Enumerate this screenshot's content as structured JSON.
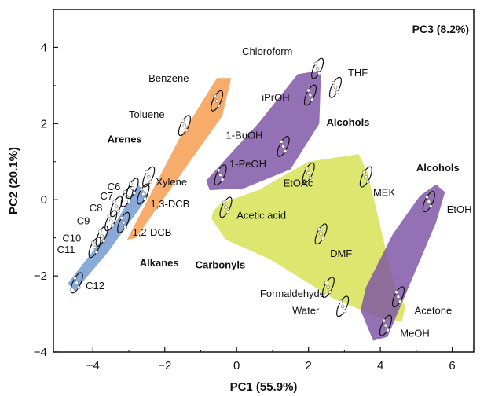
{
  "chart_data": {
    "type": "scatter",
    "title": "",
    "xlabel": "PC1 (55.9%)",
    "ylabel": "PC2 (20.1%)",
    "corner_label": "PC3 (8.2%)",
    "xlim": [
      -5.1,
      6.6
    ],
    "ylim": [
      -4.0,
      5.0
    ],
    "xticks": [
      "−4",
      "−2",
      "0",
      "2",
      "4",
      "6"
    ],
    "xtick_values": [
      -4,
      -2,
      0,
      2,
      4,
      6
    ],
    "yticks": [
      "−4",
      "−2",
      "0",
      "2",
      "4"
    ],
    "ytick_values": [
      -4,
      -2,
      0,
      2,
      4
    ],
    "groups": [
      {
        "name": "Alkanes",
        "color": "#6d97d0",
        "label_at": [
          -2.7,
          -1.75
        ],
        "polygon": [
          [
            -4.7,
            -2.2
          ],
          [
            -3.3,
            -0.5
          ],
          [
            -2.75,
            0.4
          ],
          [
            -2.45,
            0.1
          ],
          [
            -3.6,
            -1.4
          ],
          [
            -4.5,
            -2.4
          ]
        ]
      },
      {
        "name": "Arenes",
        "color": "#f59a4b",
        "label_at": [
          -3.6,
          1.5
        ],
        "polygon": [
          [
            -3.05,
            -1.05
          ],
          [
            -1.6,
            1.6
          ],
          [
            -0.55,
            3.2
          ],
          [
            -0.15,
            3.2
          ],
          [
            -0.4,
            2.2
          ],
          [
            -1.9,
            0.2
          ],
          [
            -2.8,
            -1.0
          ]
        ]
      },
      {
        "name": "Alcohols",
        "color": "#7d52a5",
        "label_at": [
          2.5,
          1.95
        ],
        "polygon": [
          [
            -0.85,
            0.5
          ],
          [
            0.6,
            2.0
          ],
          [
            1.7,
            3.3
          ],
          [
            2.35,
            3.4
          ],
          [
            2.3,
            2.0
          ],
          [
            1.5,
            0.8
          ],
          [
            0.2,
            0.3
          ],
          [
            -0.75,
            0.25
          ]
        ]
      },
      {
        "name": "Carbonyls",
        "color": "#d6e04e",
        "label_at": [
          -1.15,
          -1.8
        ],
        "polygon": [
          [
            -0.7,
            -0.5
          ],
          [
            -0.3,
            -1.05
          ],
          [
            0.9,
            -1.55
          ],
          [
            2.7,
            -2.6
          ],
          [
            4.0,
            -3.1
          ],
          [
            4.6,
            -3.2
          ],
          [
            4.7,
            -2.8
          ],
          [
            4.4,
            -2.3
          ],
          [
            3.65,
            0.7
          ],
          [
            3.4,
            1.2
          ],
          [
            2.0,
            1.0
          ],
          [
            0.6,
            0.25
          ],
          [
            -0.45,
            -0.1
          ],
          [
            -0.65,
            -0.3
          ]
        ]
      },
      {
        "name": "Alcohols",
        "color": "#7d52a5",
        "label_at": [
          5.0,
          0.75
        ],
        "polygon": [
          [
            3.45,
            -2.9
          ],
          [
            3.8,
            -3.7
          ],
          [
            4.2,
            -3.6
          ],
          [
            5.55,
            -0.6
          ],
          [
            5.8,
            0.2
          ],
          [
            5.55,
            0.4
          ],
          [
            5.1,
            0.1
          ],
          [
            4.35,
            -0.9
          ],
          [
            3.6,
            -2.3
          ]
        ]
      }
    ],
    "points": [
      {
        "name": "C12",
        "x": -4.45,
        "y": -2.18,
        "label_at": [
          -4.2,
          -2.35
        ]
      },
      {
        "name": "C11",
        "x": -3.95,
        "y": -1.25,
        "label_at": [
          -5.0,
          -1.4
        ]
      },
      {
        "name": "C10",
        "x": -3.75,
        "y": -0.95,
        "label_at": [
          -4.85,
          -1.1
        ]
      },
      {
        "name": "C9",
        "x": -3.5,
        "y": -0.55,
        "label_at": [
          -4.45,
          -0.65
        ]
      },
      {
        "name": "C8",
        "x": -3.35,
        "y": -0.18,
        "label_at": [
          -4.1,
          -0.3
        ]
      },
      {
        "name": "C7",
        "x": -3.05,
        "y": 0.08,
        "label_at": [
          -3.8,
          0.0
        ]
      },
      {
        "name": "C6",
        "x": -2.9,
        "y": 0.3,
        "label_at": [
          -3.6,
          0.25
        ]
      },
      {
        "name": "1,2-DCB",
        "x": -3.15,
        "y": -0.6,
        "label_at": [
          -2.9,
          -0.95
        ]
      },
      {
        "name": "1,3-DCB",
        "x": -2.6,
        "y": 0.15,
        "label_at": [
          -2.4,
          -0.2
        ]
      },
      {
        "name": "Xylene",
        "x": -2.45,
        "y": 0.6,
        "label_at": [
          -2.25,
          0.38
        ]
      },
      {
        "name": "Toluene",
        "x": -1.45,
        "y": 1.95,
        "label_at": [
          -3.0,
          2.15
        ]
      },
      {
        "name": "Benzene",
        "x": -0.55,
        "y": 2.6,
        "label_at": [
          -2.45,
          3.1
        ]
      },
      {
        "name": "1-PeOH",
        "x": -0.45,
        "y": 0.65,
        "label_at": [
          -0.2,
          0.85
        ]
      },
      {
        "name": "1-BuOH",
        "x": 1.3,
        "y": 1.4,
        "label_at": [
          -0.3,
          1.6
        ]
      },
      {
        "name": "iPrOH",
        "x": 2.05,
        "y": 2.75,
        "label_at": [
          0.7,
          2.6
        ]
      },
      {
        "name": "Chloroform",
        "x": 2.25,
        "y": 3.45,
        "label_at": [
          0.15,
          3.8
        ]
      },
      {
        "name": "THF",
        "x": 2.75,
        "y": 2.95,
        "label_at": [
          3.1,
          3.25
        ]
      },
      {
        "name": "EtOAc",
        "x": 2.0,
        "y": 0.7,
        "label_at": [
          1.3,
          0.35
        ]
      },
      {
        "name": "MEK",
        "x": 3.6,
        "y": 0.6,
        "label_at": [
          3.8,
          0.1
        ]
      },
      {
        "name": "Acetic acid",
        "x": -0.3,
        "y": -0.2,
        "label_at": [
          0.0,
          -0.5
        ]
      },
      {
        "name": "DMF",
        "x": 2.35,
        "y": -0.9,
        "label_at": [
          2.6,
          -1.5
        ]
      },
      {
        "name": "Formaldehyde",
        "x": 2.55,
        "y": -2.3,
        "label_at": [
          0.65,
          -2.55
        ]
      },
      {
        "name": "Water",
        "x": 2.95,
        "y": -2.8,
        "label_at": [
          1.55,
          -3.0
        ]
      },
      {
        "name": "EtOH",
        "x": 5.35,
        "y": -0.05,
        "label_at": [
          5.85,
          -0.35
        ]
      },
      {
        "name": "Acetone",
        "x": 4.5,
        "y": -2.55,
        "label_at": [
          4.95,
          -3.0
        ]
      },
      {
        "name": "MeOH",
        "x": 4.15,
        "y": -3.3,
        "label_at": [
          4.55,
          -3.6
        ]
      }
    ]
  }
}
